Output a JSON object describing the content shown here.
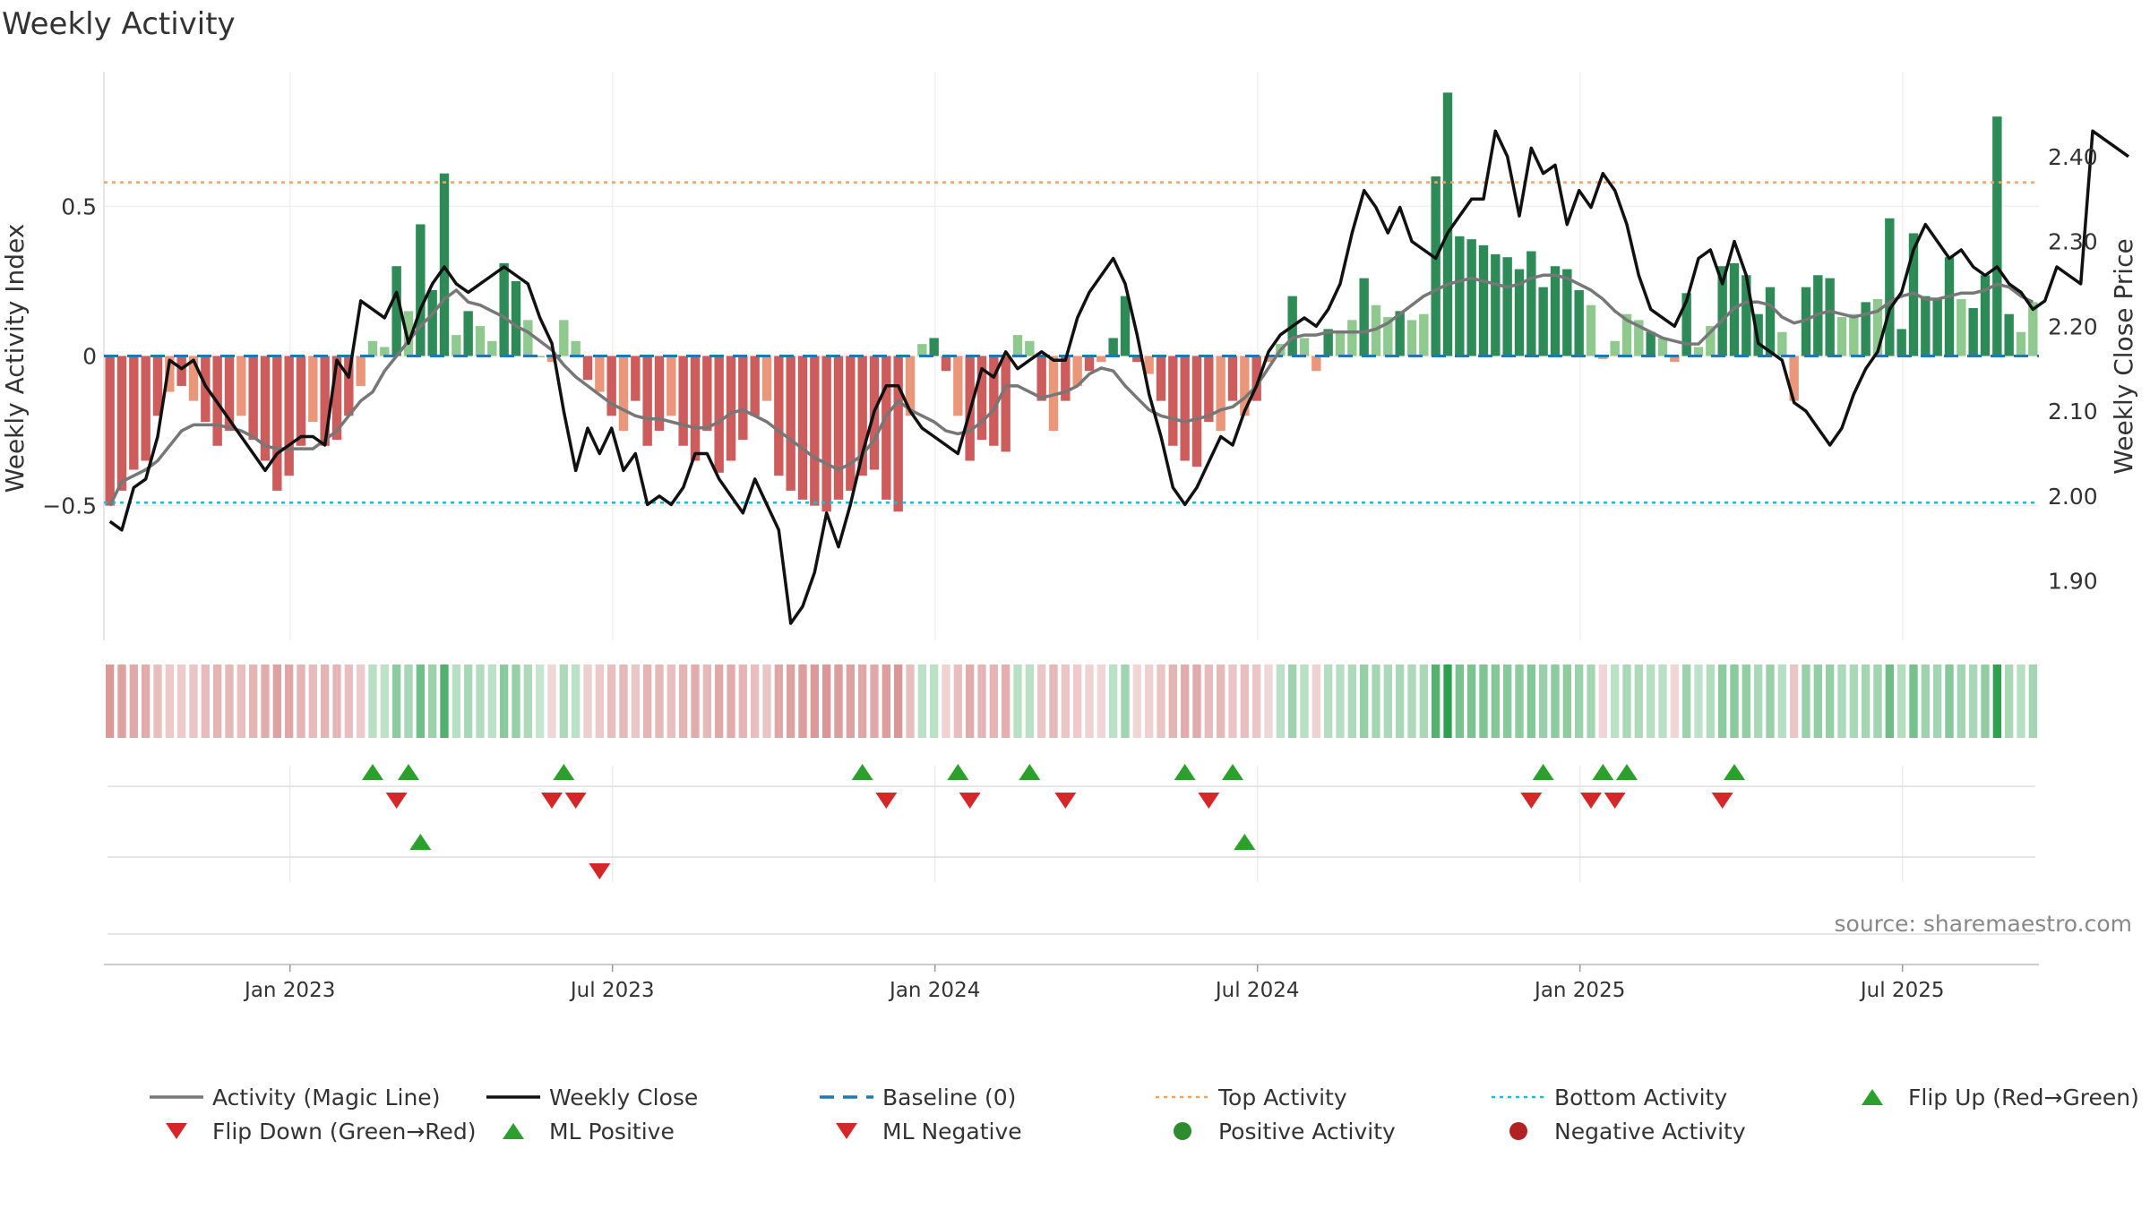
{
  "chart_data": {
    "type": "bar",
    "title": "Weekly Activity",
    "ylabel_left": "Weekly Activity Index",
    "ylabel_right": "Weekly Close Price",
    "source": "source: sharemaestro.com",
    "ylim_left": [
      -0.95,
      0.95
    ],
    "ylim_right": [
      1.83,
      2.5
    ],
    "yticks_left": [
      {
        "value": 0.5,
        "label": "0.5"
      },
      {
        "value": 0,
        "label": "0"
      },
      {
        "value": -0.5,
        "label": "−0.5"
      }
    ],
    "yticks_right": [
      {
        "value": 2.4,
        "label": "2.40"
      },
      {
        "value": 2.3,
        "label": "2.30"
      },
      {
        "value": 2.2,
        "label": "2.20"
      },
      {
        "value": 2.1,
        "label": "2.10"
      },
      {
        "value": 2.0,
        "label": "2.00"
      },
      {
        "value": 1.9,
        "label": "1.90"
      }
    ],
    "xticks": [
      {
        "week": 15,
        "label": "Jan 2023"
      },
      {
        "week": 41,
        "label": "Jul 2023"
      },
      {
        "week": 67,
        "label": "Jan 2024"
      },
      {
        "week": 93,
        "label": "Jul 2024"
      },
      {
        "week": 119,
        "label": "Jan 2025"
      },
      {
        "week": 145,
        "label": "Jul 2025"
      }
    ],
    "x_range": [
      0,
      156
    ],
    "top_activity": 0.58,
    "bottom_activity": -0.49,
    "baseline": 0,
    "activity": [
      -0.5,
      -0.45,
      -0.38,
      -0.35,
      -0.2,
      -0.12,
      -0.1,
      -0.15,
      -0.22,
      -0.3,
      -0.25,
      -0.2,
      -0.28,
      -0.35,
      -0.45,
      -0.4,
      -0.3,
      -0.22,
      -0.3,
      -0.28,
      -0.2,
      -0.1,
      0.05,
      0.03,
      0.3,
      0.15,
      0.44,
      0.22,
      0.61,
      0.07,
      0.15,
      0.1,
      0.05,
      0.31,
      0.25,
      0.12,
      0.0,
      -0.02,
      0.12,
      0.05,
      -0.08,
      -0.12,
      -0.2,
      -0.25,
      -0.15,
      -0.3,
      -0.25,
      -0.2,
      -0.3,
      -0.35,
      -0.25,
      -0.39,
      -0.35,
      -0.28,
      -0.2,
      -0.15,
      -0.4,
      -0.45,
      -0.48,
      -0.5,
      -0.52,
      -0.48,
      -0.45,
      -0.4,
      -0.38,
      -0.48,
      -0.52,
      -0.2,
      0.04,
      0.06,
      -0.05,
      -0.2,
      -0.35,
      -0.28,
      -0.3,
      -0.32,
      0.07,
      0.05,
      -0.15,
      -0.25,
      -0.15,
      -0.1,
      -0.05,
      -0.02,
      0.06,
      0.2,
      -0.02,
      -0.06,
      -0.15,
      -0.3,
      -0.35,
      -0.37,
      -0.22,
      -0.25,
      -0.15,
      -0.2,
      -0.15,
      -0.02,
      0.04,
      0.2,
      0.06,
      -0.05,
      0.09,
      0.08,
      0.12,
      0.26,
      0.17,
      0.13,
      0.15,
      0.12,
      0.14,
      0.6,
      0.88,
      0.4,
      0.39,
      0.37,
      0.34,
      0.33,
      0.29,
      0.35,
      0.23,
      0.3,
      0.29,
      0.22,
      0.17,
      -0.01,
      0.05,
      0.14,
      0.12,
      0.08,
      0.06,
      -0.02,
      0.21,
      0.03,
      0.1,
      0.3,
      0.31,
      0.27,
      0.14,
      0.23,
      0.08,
      -0.15,
      0.23,
      0.27,
      0.26,
      0.13,
      0.14,
      0.18,
      0.19,
      0.46,
      0.09,
      0.41,
      0.2,
      0.19,
      0.33,
      0.19,
      0.16,
      0.27,
      0.8,
      0.14,
      0.08,
      0.18
    ],
    "activity_ml": [
      -0.5,
      -0.42,
      -0.4,
      -0.38,
      -0.35,
      -0.3,
      -0.25,
      -0.23,
      -0.23,
      -0.23,
      -0.24,
      -0.25,
      -0.27,
      -0.3,
      -0.31,
      -0.31,
      -0.31,
      -0.31,
      -0.28,
      -0.25,
      -0.2,
      -0.15,
      -0.12,
      -0.05,
      0.0,
      0.05,
      0.1,
      0.14,
      0.19,
      0.22,
      0.18,
      0.17,
      0.15,
      0.13,
      0.1,
      0.08,
      0.05,
      0.02,
      -0.03,
      -0.07,
      -0.1,
      -0.13,
      -0.16,
      -0.18,
      -0.2,
      -0.21,
      -0.21,
      -0.22,
      -0.23,
      -0.24,
      -0.24,
      -0.22,
      -0.19,
      -0.18,
      -0.2,
      -0.22,
      -0.25,
      -0.28,
      -0.31,
      -0.34,
      -0.36,
      -0.38,
      -0.36,
      -0.33,
      -0.28,
      -0.2,
      -0.15,
      -0.18,
      -0.2,
      -0.22,
      -0.25,
      -0.26,
      -0.25,
      -0.22,
      -0.18,
      -0.1,
      -0.1,
      -0.12,
      -0.14,
      -0.13,
      -0.12,
      -0.1,
      -0.06,
      -0.04,
      -0.05,
      -0.1,
      -0.14,
      -0.18,
      -0.2,
      -0.21,
      -0.22,
      -0.21,
      -0.2,
      -0.18,
      -0.17,
      -0.14,
      -0.1,
      -0.04,
      0.02,
      0.06,
      0.07,
      0.07,
      0.08,
      0.08,
      0.08,
      0.08,
      0.09,
      0.11,
      0.14,
      0.17,
      0.2,
      0.22,
      0.24,
      0.25,
      0.26,
      0.25,
      0.24,
      0.23,
      0.24,
      0.26,
      0.27,
      0.27,
      0.26,
      0.24,
      0.22,
      0.19,
      0.15,
      0.12,
      0.1,
      0.08,
      0.06,
      0.05,
      0.04,
      0.04,
      0.08,
      0.12,
      0.16,
      0.18,
      0.18,
      0.17,
      0.13,
      0.11,
      0.12,
      0.14,
      0.15,
      0.14,
      0.13,
      0.14,
      0.15,
      0.18,
      0.2,
      0.21,
      0.19,
      0.19,
      0.2,
      0.21,
      0.21,
      0.22,
      0.24,
      0.23,
      0.2,
      0.18
    ],
    "weekly_close": [
      1.97,
      1.96,
      2.01,
      2.02,
      2.07,
      2.16,
      2.15,
      2.16,
      2.13,
      2.11,
      2.09,
      2.07,
      2.05,
      2.03,
      2.05,
      2.06,
      2.07,
      2.07,
      2.06,
      2.16,
      2.14,
      2.23,
      2.22,
      2.21,
      2.24,
      2.18,
      2.22,
      2.25,
      2.27,
      2.25,
      2.24,
      2.25,
      2.26,
      2.27,
      2.26,
      2.25,
      2.21,
      2.18,
      2.1,
      2.03,
      2.08,
      2.05,
      2.08,
      2.03,
      2.05,
      1.99,
      2.0,
      1.99,
      2.01,
      2.05,
      2.05,
      2.02,
      2.0,
      1.98,
      2.02,
      1.99,
      1.96,
      1.85,
      1.87,
      1.91,
      1.98,
      1.94,
      1.99,
      2.05,
      2.1,
      2.13,
      2.13,
      2.1,
      2.08,
      2.07,
      2.06,
      2.05,
      2.1,
      2.15,
      2.14,
      2.17,
      2.15,
      2.16,
      2.17,
      2.16,
      2.16,
      2.21,
      2.24,
      2.26,
      2.28,
      2.25,
      2.19,
      2.12,
      2.07,
      2.01,
      1.99,
      2.01,
      2.04,
      2.07,
      2.06,
      2.1,
      2.13,
      2.17,
      2.19,
      2.2,
      2.21,
      2.2,
      2.22,
      2.25,
      2.31,
      2.36,
      2.34,
      2.31,
      2.34,
      2.3,
      2.29,
      2.28,
      2.31,
      2.33,
      2.35,
      2.35,
      2.43,
      2.4,
      2.33,
      2.41,
      2.38,
      2.39,
      2.32,
      2.36,
      2.34,
      2.38,
      2.36,
      2.32,
      2.26,
      2.22,
      2.21,
      2.2,
      2.23,
      2.28,
      2.29,
      2.25,
      2.3,
      2.26,
      2.18,
      2.17,
      2.16,
      2.11,
      2.1,
      2.08,
      2.06,
      2.08,
      2.12,
      2.15,
      2.17,
      2.22,
      2.24,
      2.29,
      2.32,
      2.3,
      2.28,
      2.29,
      2.27,
      2.26,
      2.27,
      2.25,
      2.24,
      2.22,
      2.23,
      2.27,
      2.26,
      2.25,
      2.43,
      2.42,
      2.41,
      2.4
    ],
    "strip_values": [
      -0.5,
      -0.45,
      -0.38,
      -0.35,
      -0.2,
      -0.12,
      -0.1,
      -0.15,
      -0.22,
      -0.3,
      -0.25,
      -0.2,
      -0.28,
      -0.35,
      -0.45,
      -0.4,
      -0.3,
      -0.22,
      -0.3,
      -0.28,
      -0.2,
      -0.1,
      0.05,
      0.03,
      0.3,
      0.15,
      0.44,
      0.22,
      0.61,
      0.07,
      0.15,
      0.1,
      0.05,
      0.31,
      0.25,
      0.12,
      0.0,
      -0.02,
      0.12,
      0.05,
      -0.08,
      -0.12,
      -0.2,
      -0.25,
      -0.15,
      -0.3,
      -0.25,
      -0.2,
      -0.3,
      -0.35,
      -0.25,
      -0.39,
      -0.35,
      -0.28,
      -0.2,
      -0.15,
      -0.4,
      -0.45,
      -0.48,
      -0.5,
      -0.52,
      -0.48,
      -0.45,
      -0.4,
      -0.38,
      -0.48,
      -0.52,
      -0.2,
      0.04,
      0.06,
      -0.05,
      -0.2,
      -0.35,
      -0.28,
      -0.3,
      -0.32,
      0.07,
      0.05,
      -0.15,
      -0.25,
      -0.15,
      -0.1,
      -0.05,
      -0.02,
      0.06,
      0.2,
      -0.02,
      -0.06,
      -0.15,
      -0.3,
      -0.35,
      -0.37,
      -0.22,
      -0.25,
      -0.15,
      -0.2,
      -0.15,
      -0.02,
      0.04,
      0.2,
      0.06,
      -0.05,
      0.09,
      0.08,
      0.12,
      0.26,
      0.17,
      0.13,
      0.15,
      0.12,
      0.14,
      0.6,
      0.88,
      0.4,
      0.39,
      0.37,
      0.34,
      0.33,
      0.29,
      0.35,
      0.23,
      0.3,
      0.29,
      0.22,
      0.17,
      -0.01,
      0.05,
      0.14,
      0.12,
      0.08,
      0.06,
      -0.02,
      0.21,
      0.03,
      0.1,
      0.3,
      0.31,
      0.27,
      0.14,
      0.23,
      0.08,
      -0.15,
      0.23,
      0.27,
      0.26,
      0.13,
      0.14,
      0.18,
      0.19,
      0.46,
      0.09,
      0.41,
      0.2,
      0.19,
      0.33,
      0.19,
      0.16,
      0.27,
      0.8,
      0.14,
      0.08,
      0.18
    ],
    "events": {
      "flip_up": [
        22,
        25,
        38,
        63,
        71,
        77,
        90,
        94,
        120,
        125,
        127,
        136
      ],
      "flip_down": [
        24,
        37,
        39,
        65,
        72,
        80,
        92,
        119,
        124,
        126,
        135
      ],
      "ml_positive": [
        26,
        95
      ],
      "ml_negative": [
        41
      ]
    },
    "legend": [
      {
        "label": "Activity (Magic Line)",
        "kind": "line-solid",
        "color": "#777777"
      },
      {
        "label": "Weekly Close",
        "kind": "line-solid",
        "color": "#111111"
      },
      {
        "label": "Baseline (0)",
        "kind": "line-dashed",
        "color": "#1f77b4"
      },
      {
        "label": "Top Activity",
        "kind": "line-dotted",
        "color": "#f4a261"
      },
      {
        "label": "Bottom Activity",
        "kind": "line-dotted",
        "color": "#17becf"
      },
      {
        "label": "Flip Up (Red→Green)",
        "kind": "triangle-up",
        "color": "#2ca02c"
      },
      {
        "label": "Flip Down (Green→Red)",
        "kind": "triangle-down",
        "color": "#d62728"
      },
      {
        "label": "ML Positive",
        "kind": "triangle-up",
        "color": "#2ca02c"
      },
      {
        "label": "ML Negative",
        "kind": "triangle-down",
        "color": "#d62728"
      },
      {
        "label": "Positive Activity",
        "kind": "circle",
        "color": "#2e8b2e"
      },
      {
        "label": "Negative Activity",
        "kind": "circle",
        "color": "#b22222"
      }
    ],
    "colors": {
      "pos_dark": "#2e8b57",
      "pos_light": "#8fc98f",
      "neg_dark": "#cd5c5c",
      "neg_light": "#e9967a",
      "magic_line": "#777777",
      "close_line": "#111111",
      "baseline": "#1f77b4",
      "top_line": "#f4a261",
      "bottom_line": "#17becf",
      "up_marker": "#2ca02c",
      "down_marker": "#d62728",
      "grid": "#e6e6e6"
    }
  }
}
